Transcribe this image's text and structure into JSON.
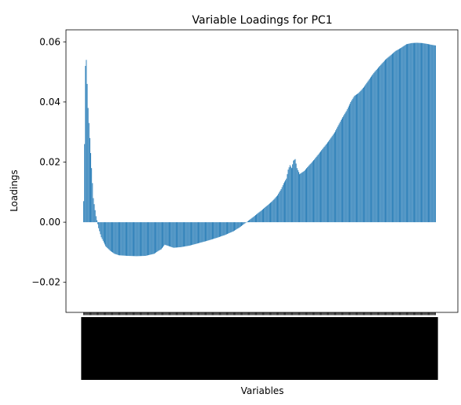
{
  "chart_data": {
    "type": "bar",
    "title": "Variable Loadings for PC1",
    "xlabel": "Variables",
    "ylabel": "Loadings",
    "ylim": [
      -0.03,
      0.064
    ],
    "yticks": [
      -0.02,
      0.0,
      0.02,
      0.04,
      0.06
    ],
    "ytick_labels": [
      "−0.02",
      "0.00",
      "0.02",
      "0.04",
      "0.06"
    ],
    "bar_color": "#1f77b4",
    "grid": false,
    "legend": "none",
    "n_variables": 400,
    "x_tick_labels": "dense, overlapping, unreadable",
    "profile_points": [
      [
        0,
        0.007
      ],
      [
        1,
        0.026
      ],
      [
        2,
        0.052
      ],
      [
        3,
        0.054
      ],
      [
        5,
        0.038
      ],
      [
        7,
        0.028
      ],
      [
        9,
        0.018
      ],
      [
        11,
        0.008
      ],
      [
        14,
        0.002
      ],
      [
        17,
        -0.002
      ],
      [
        20,
        -0.005
      ],
      [
        25,
        -0.008
      ],
      [
        30,
        -0.0095
      ],
      [
        35,
        -0.0105
      ],
      [
        40,
        -0.011
      ],
      [
        50,
        -0.0112
      ],
      [
        60,
        -0.0113
      ],
      [
        70,
        -0.0112
      ],
      [
        80,
        -0.0105
      ],
      [
        85,
        -0.0095
      ],
      [
        88,
        -0.009
      ],
      [
        92,
        -0.0075
      ],
      [
        97,
        -0.008
      ],
      [
        102,
        -0.0085
      ],
      [
        110,
        -0.0083
      ],
      [
        120,
        -0.0078
      ],
      [
        130,
        -0.007
      ],
      [
        140,
        -0.0062
      ],
      [
        150,
        -0.0053
      ],
      [
        160,
        -0.0043
      ],
      [
        170,
        -0.003
      ],
      [
        177,
        -0.0017
      ],
      [
        182,
        -0.0006
      ],
      [
        186,
        0.0003
      ],
      [
        190,
        0.0012
      ],
      [
        196,
        0.0026
      ],
      [
        202,
        0.004
      ],
      [
        208,
        0.0055
      ],
      [
        214,
        0.007
      ],
      [
        220,
        0.009
      ],
      [
        224,
        0.011
      ],
      [
        227,
        0.013
      ],
      [
        230,
        0.0145
      ],
      [
        232,
        0.0175
      ],
      [
        234,
        0.019
      ],
      [
        236,
        0.018
      ],
      [
        238,
        0.0205
      ],
      [
        240,
        0.021
      ],
      [
        242,
        0.018
      ],
      [
        245,
        0.016
      ],
      [
        250,
        0.017
      ],
      [
        256,
        0.019
      ],
      [
        262,
        0.021
      ],
      [
        270,
        0.024
      ],
      [
        278,
        0.027
      ],
      [
        285,
        0.03
      ],
      [
        292,
        0.034
      ],
      [
        298,
        0.037
      ],
      [
        303,
        0.04
      ],
      [
        307,
        0.042
      ],
      [
        312,
        0.043
      ],
      [
        318,
        0.045
      ],
      [
        325,
        0.048
      ],
      [
        330,
        0.05
      ],
      [
        336,
        0.052
      ],
      [
        342,
        0.054
      ],
      [
        348,
        0.0555
      ],
      [
        354,
        0.057
      ],
      [
        360,
        0.058
      ],
      [
        366,
        0.0592
      ],
      [
        372,
        0.0596
      ],
      [
        378,
        0.0597
      ],
      [
        384,
        0.0596
      ],
      [
        390,
        0.0593
      ],
      [
        395,
        0.059
      ],
      [
        399,
        0.0588
      ]
    ]
  }
}
